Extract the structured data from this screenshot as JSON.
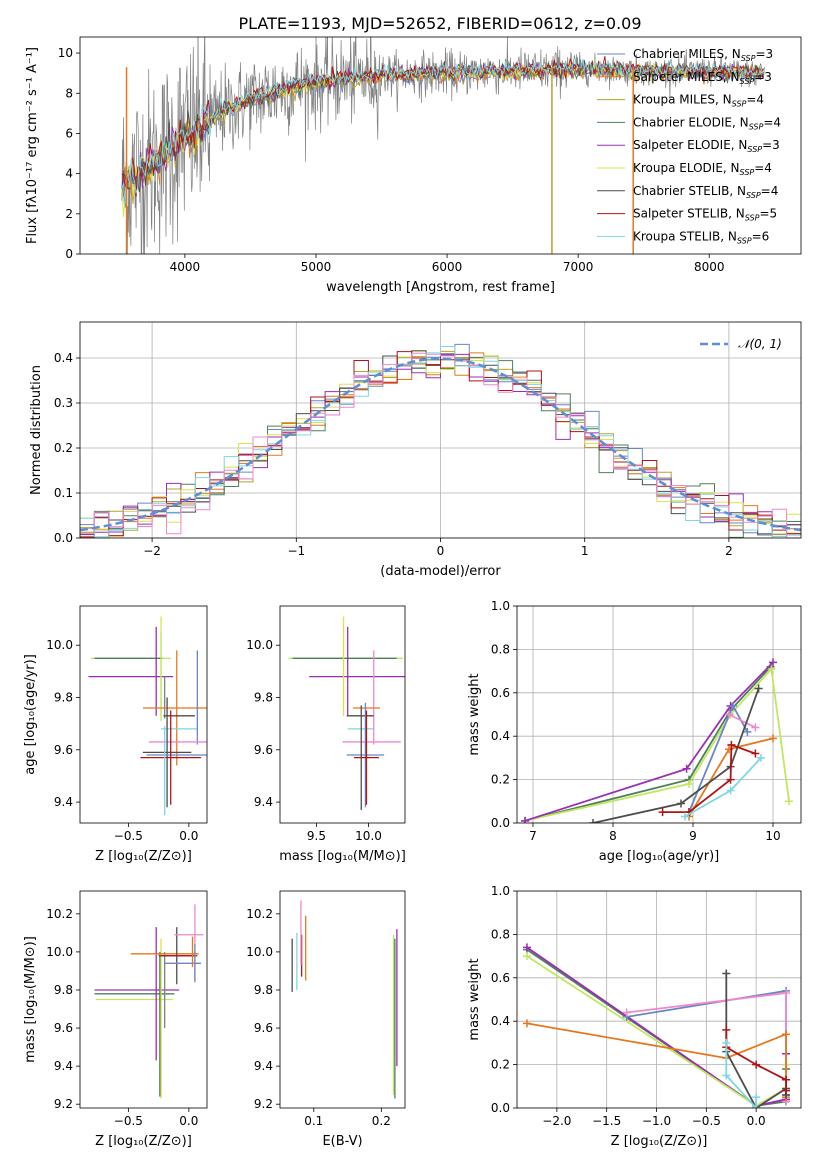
{
  "figure_title": "PLATE=1193, MJD=52652, FIBERID=0612, z=0.09",
  "colors": {
    "Chabrier MILES": "#6a86c8",
    "Salpeter MILES": "#e4781e",
    "Kroupa MILES": "#bba02a",
    "Chabrier ELODIE": "#4f7f5a",
    "Salpeter ELODIE": "#9a2fb5",
    "Kroupa ELODIE": "#d9e34a",
    "Chabrier STELIB": "#4d4d4d",
    "Salpeter STELIB": "#b01414",
    "Kroupa STELIB": "#7fd6e2",
    "Kroupa-pink": "#ee88cc",
    "Kroupa-lime": "#bfe860",
    "data": "#808080",
    "normal": "#5b8fd6"
  },
  "chart_data": [
    {
      "id": "spectrum",
      "type": "line",
      "xlabel": "wavelength [Angstrom, rest frame]",
      "ylabel": "Flux [fλ10⁻¹⁷ erg cm⁻² s⁻¹ A⁻¹]",
      "xlim": [
        3200,
        8700
      ],
      "ylim": [
        0,
        10.8
      ],
      "xticks": [
        4000,
        5000,
        6000,
        7000,
        8000
      ],
      "yticks": [
        0,
        2,
        4,
        6,
        8,
        10
      ],
      "legend_position": "top-right",
      "legend": [
        {
          "name": "Chabrier MILES, N_SSP=3",
          "label": "Chabrier MILES, N",
          "sub": "SSP",
          "tail": "=3",
          "color": "#6a86c8"
        },
        {
          "name": "Salpeter MILES, N_SSP=3",
          "label": "Salpeter MILES, N",
          "sub": "SSP",
          "tail": "=3",
          "color": "#e4781e"
        },
        {
          "name": "Kroupa MILES, N_SSP=4",
          "label": "Kroupa MILES, N",
          "sub": "SSP",
          "tail": "=4",
          "color": "#bba02a"
        },
        {
          "name": "Chabrier ELODIE, N_SSP=4",
          "label": "Chabrier ELODIE, N",
          "sub": "SSP",
          "tail": "=4",
          "color": "#4f7f5a"
        },
        {
          "name": "Salpeter ELODIE, N_SSP=3",
          "label": "Salpeter ELODIE, N",
          "sub": "SSP",
          "tail": "=3",
          "color": "#9a2fb5"
        },
        {
          "name": "Kroupa ELODIE, N_SSP=4",
          "label": "Kroupa ELODIE, N",
          "sub": "SSP",
          "tail": "=4",
          "color": "#d9e34a"
        },
        {
          "name": "Chabrier STELIB, N_SSP=4",
          "label": "Chabrier STELIB, N",
          "sub": "SSP",
          "tail": "=4",
          "color": "#4d4d4d"
        },
        {
          "name": "Salpeter STELIB, N_SSP=5",
          "label": "Salpeter STELIB, N",
          "sub": "SSP",
          "tail": "=5",
          "color": "#b01414"
        },
        {
          "name": "Kroupa STELIB, N_SSP=6",
          "label": "Kroupa STELIB, N",
          "sub": "SSP",
          "tail": "=6",
          "color": "#7fd6e2"
        }
      ],
      "model_anchors": [
        [
          3520,
          3.4
        ],
        [
          3650,
          4.1
        ],
        [
          3800,
          4.6
        ],
        [
          3950,
          5.6
        ],
        [
          4100,
          6.2
        ],
        [
          4300,
          7.1
        ],
        [
          4500,
          7.7
        ],
        [
          4800,
          8.3
        ],
        [
          5100,
          8.6
        ],
        [
          5500,
          8.9
        ],
        [
          6000,
          9.0
        ],
        [
          6500,
          9.1
        ],
        [
          7000,
          9.2
        ],
        [
          7500,
          9.1
        ],
        [
          8000,
          9.1
        ],
        [
          8400,
          9.0
        ]
      ],
      "data_range": [
        3520,
        8420
      ],
      "vlines": [
        {
          "x": 6800,
          "color": "#bba02a"
        },
        {
          "x": 7420,
          "color": "#e4781e"
        },
        {
          "x": 3555,
          "color": "#e4781e"
        }
      ]
    },
    {
      "id": "residuals",
      "type": "histogram",
      "xlabel": "(data-model)/error",
      "ylabel": "Normed distribution",
      "xlim": [
        -2.5,
        2.5
      ],
      "ylim": [
        0,
        0.48
      ],
      "xticks": [
        -2,
        -1,
        0,
        1,
        2
      ],
      "yticks": [
        0.0,
        0.1,
        0.2,
        0.3,
        0.4
      ],
      "bin_width": 0.1,
      "legend_position": "top-right",
      "legend": [
        {
          "label": "𝒩(0, 1)",
          "color": "#5b8fd6"
        }
      ]
    },
    {
      "id": "age_vs_z",
      "type": "errorbar",
      "xlabel": "Z [log₁₀(Z/Z⊙)]",
      "ylabel": "age  [log₁₀(age/yr)]",
      "xlim": [
        -0.9,
        0.15
      ],
      "ylim": [
        9.32,
        10.15
      ],
      "xticks": [
        -0.5,
        0.0
      ],
      "yticks": [
        9.4,
        9.6,
        9.8,
        10.0
      ],
      "points": [
        {
          "x": -0.48,
          "y": 9.95,
          "xerr": 0.33,
          "yerr": 0.0,
          "color": "#bfe860"
        },
        {
          "x": -0.5,
          "y": 9.95,
          "xerr": 0.28,
          "yerr": 0.0,
          "color": "#4f7f5a"
        },
        {
          "x": -0.48,
          "y": 9.88,
          "xerr": 0.35,
          "yerr": 0.0,
          "color": "#9a2fb5"
        },
        {
          "x": -0.23,
          "y": 9.92,
          "xerr": 0.0,
          "yerr": 0.19,
          "color": "#d9e34a"
        },
        {
          "x": -0.27,
          "y": 9.9,
          "xerr": 0.0,
          "yerr": 0.17,
          "color": "#9a2fb5"
        },
        {
          "x": -0.23,
          "y": 9.88,
          "xerr": 0.0,
          "yerr": 0.17,
          "color": "#bfe860"
        },
        {
          "x": -0.2,
          "y": 9.8,
          "xerr": 0.0,
          "yerr": 0.08,
          "color": "#808080"
        },
        {
          "x": -0.1,
          "y": 9.76,
          "xerr": 0.28,
          "yerr": 0.22,
          "color": "#e4781e"
        },
        {
          "x": -0.08,
          "y": 9.73,
          "xerr": 0.13,
          "yerr": 0.0,
          "color": "#4d4d4d"
        },
        {
          "x": -0.08,
          "y": 9.68,
          "xerr": 0.15,
          "yerr": 0.0,
          "color": "#7fd6e2"
        },
        {
          "x": 0.07,
          "y": 9.8,
          "xerr": 0.0,
          "yerr": 0.18,
          "color": "#6a86c8"
        },
        {
          "x": -0.05,
          "y": 9.63,
          "xerr": 0.28,
          "yerr": 0.0,
          "color": "#ee88cc"
        },
        {
          "x": -0.18,
          "y": 9.59,
          "xerr": 0.2,
          "yerr": 0.21,
          "color": "#4d4d4d"
        },
        {
          "x": -0.1,
          "y": 9.58,
          "xerr": 0.25,
          "yerr": 0.0,
          "color": "#6a86c8"
        },
        {
          "x": -0.15,
          "y": 9.57,
          "xerr": 0.25,
          "yerr": 0.18,
          "color": "#b01414"
        },
        {
          "x": -0.2,
          "y": 9.52,
          "xerr": 0.0,
          "yerr": 0.17,
          "color": "#7fd6e2"
        }
      ]
    },
    {
      "id": "age_vs_mass",
      "type": "errorbar",
      "xlabel": "mass [log₁₀(M/M⊙)]",
      "ylabel": "",
      "xlim": [
        9.15,
        10.35
      ],
      "ylim": [
        9.32,
        10.15
      ],
      "xticks": [
        9.5,
        10.0
      ],
      "yticks": [
        9.4,
        9.6,
        9.8,
        10.0
      ],
      "points": [
        {
          "x": 9.78,
          "y": 9.95,
          "xerr": 0.55,
          "yerr": 0.0,
          "color": "#bfe860"
        },
        {
          "x": 9.77,
          "y": 9.95,
          "xerr": 0.5,
          "yerr": 0.0,
          "color": "#4f7f5a"
        },
        {
          "x": 9.93,
          "y": 9.88,
          "xerr": 0.5,
          "yerr": 0.0,
          "color": "#9a2fb5"
        },
        {
          "x": 9.76,
          "y": 9.92,
          "xerr": 0.0,
          "yerr": 0.19,
          "color": "#d9e34a"
        },
        {
          "x": 9.8,
          "y": 9.9,
          "xerr": 0.0,
          "yerr": 0.17,
          "color": "#9a2fb5"
        },
        {
          "x": 10.05,
          "y": 9.8,
          "xerr": 0.0,
          "yerr": 0.18,
          "color": "#ee88cc"
        },
        {
          "x": 9.98,
          "y": 9.76,
          "xerr": 0.13,
          "yerr": 0.0,
          "color": "#e4781e"
        },
        {
          "x": 9.92,
          "y": 9.73,
          "xerr": 0.13,
          "yerr": 0.0,
          "color": "#4d4d4d"
        },
        {
          "x": 9.93,
          "y": 9.68,
          "xerr": 0.13,
          "yerr": 0.0,
          "color": "#7fd6e2"
        },
        {
          "x": 10.03,
          "y": 9.63,
          "xerr": 0.28,
          "yerr": 0.0,
          "color": "#ee88cc"
        },
        {
          "x": 9.97,
          "y": 9.58,
          "xerr": 0.18,
          "yerr": 0.2,
          "color": "#6a86c8"
        },
        {
          "x": 9.93,
          "y": 9.57,
          "xerr": 0.0,
          "yerr": 0.2,
          "color": "#4d4d4d"
        },
        {
          "x": 9.98,
          "y": 9.57,
          "xerr": 0.12,
          "yerr": 0.18,
          "color": "#b01414"
        }
      ]
    },
    {
      "id": "massweight_vs_age",
      "type": "line",
      "xlabel": "age  [log₁₀(age/yr)]",
      "ylabel": "mass weight",
      "xlim": [
        6.8,
        10.35
      ],
      "ylim": [
        0,
        1.0
      ],
      "xticks": [
        7,
        8,
        9,
        10
      ],
      "yticks": [
        0.0,
        0.2,
        0.4,
        0.6,
        0.8,
        1.0
      ],
      "series": [
        {
          "color": "#4f7f5a",
          "x": [
            6.9,
            8.95,
            9.47,
            9.97
          ],
          "y": [
            0.01,
            0.2,
            0.52,
            0.72
          ]
        },
        {
          "color": "#bfe860",
          "x": [
            6.9,
            8.95,
            9.47,
            9.98,
            10.2
          ],
          "y": [
            0.01,
            0.18,
            0.5,
            0.71,
            0.1
          ]
        },
        {
          "color": "#9a2fb5",
          "x": [
            6.9,
            8.92,
            9.47,
            10.0
          ],
          "y": [
            0.01,
            0.25,
            0.54,
            0.74
          ]
        },
        {
          "color": "#6a86c8",
          "x": [
            8.95,
            9.5,
            9.68
          ],
          "y": [
            0.05,
            0.54,
            0.42
          ]
        },
        {
          "color": "#ee88cc",
          "x": [
            9.45,
            9.78
          ],
          "y": [
            0.5,
            0.44
          ]
        },
        {
          "color": "#e4781e",
          "x": [
            8.95,
            9.45,
            10.0
          ],
          "y": [
            0.03,
            0.34,
            0.39
          ]
        },
        {
          "color": "#4d4d4d",
          "x": [
            7.75,
            8.85,
            9.47,
            9.82
          ],
          "y": [
            0.0,
            0.09,
            0.26,
            0.62
          ]
        },
        {
          "color": "#b01414",
          "x": [
            8.62,
            8.95,
            9.47,
            9.48,
            9.78
          ],
          "y": [
            0.05,
            0.05,
            0.2,
            0.36,
            0.32
          ]
        },
        {
          "color": "#7fd6e2",
          "x": [
            8.9,
            9.47,
            9.85
          ],
          "y": [
            0.03,
            0.15,
            0.3
          ]
        }
      ]
    },
    {
      "id": "mass_vs_z",
      "type": "errorbar",
      "xlabel": "Z [log₁₀(Z/Z⊙)]",
      "ylabel": "mass [log₁₀(M/M⊙)]",
      "xlim": [
        -0.9,
        0.15
      ],
      "ylim": [
        9.18,
        10.32
      ],
      "xticks": [
        -0.5,
        0.0
      ],
      "yticks": [
        9.2,
        9.4,
        9.6,
        9.8,
        10.0,
        10.2
      ],
      "points": [
        {
          "x": -0.45,
          "y": 9.78,
          "xerr": 0.33,
          "yerr": 0.0,
          "color": "#4f7f5a"
        },
        {
          "x": -0.45,
          "y": 9.75,
          "xerr": 0.32,
          "yerr": 0.0,
          "color": "#bfe860"
        },
        {
          "x": -0.43,
          "y": 9.8,
          "xerr": 0.35,
          "yerr": 0.0,
          "color": "#9a2fb5"
        },
        {
          "x": -0.27,
          "y": 9.78,
          "xerr": 0.0,
          "yerr": 0.35,
          "color": "#9a2fb5"
        },
        {
          "x": -0.23,
          "y": 9.65,
          "xerr": 0.0,
          "yerr": 0.42,
          "color": "#d9e34a"
        },
        {
          "x": -0.24,
          "y": 9.62,
          "xerr": 0.0,
          "yerr": 0.38,
          "color": "#4f7f5a"
        },
        {
          "x": -0.2,
          "y": 9.8,
          "xerr": 0.0,
          "yerr": 0.2,
          "color": "#808080"
        },
        {
          "x": -0.2,
          "y": 9.99,
          "xerr": 0.28,
          "yerr": 0.0,
          "color": "#e4781e"
        },
        {
          "x": -0.1,
          "y": 9.98,
          "xerr": 0.15,
          "yerr": 0.15,
          "color": "#4d4d4d"
        },
        {
          "x": -0.08,
          "y": 9.98,
          "xerr": 0.15,
          "yerr": 0.0,
          "color": "#b01414"
        },
        {
          "x": -0.05,
          "y": 9.94,
          "xerr": 0.15,
          "yerr": 0.0,
          "color": "#6a86c8"
        },
        {
          "x": 0.0,
          "y": 10.09,
          "xerr": 0.12,
          "yerr": 0.0,
          "color": "#ee88cc"
        },
        {
          "x": 0.05,
          "y": 10.05,
          "xerr": 0.0,
          "yerr": 0.2,
          "color": "#ee88cc"
        },
        {
          "x": 0.05,
          "y": 9.94,
          "xerr": 0.0,
          "yerr": 0.1,
          "color": "#6a86c8"
        },
        {
          "x": 0.03,
          "y": 10.0,
          "xerr": 0.0,
          "yerr": 0.08,
          "color": "#e4781e"
        }
      ]
    },
    {
      "id": "mass_vs_ebv",
      "type": "errorbar",
      "xlabel": "E(B-V)",
      "ylabel": "",
      "xlim": [
        0.05,
        0.235
      ],
      "ylim": [
        9.18,
        10.32
      ],
      "xticks": [
        0.1,
        0.2
      ],
      "yticks": [
        9.2,
        9.4,
        9.6,
        9.8,
        10.0,
        10.2
      ],
      "points": [
        {
          "x": 0.068,
          "y": 9.93,
          "xerr": 0.0,
          "yerr": 0.14,
          "color": "#4d4d4d"
        },
        {
          "x": 0.075,
          "y": 9.95,
          "xerr": 0.0,
          "yerr": 0.15,
          "color": "#7fd6e2"
        },
        {
          "x": 0.082,
          "y": 9.98,
          "xerr": 0.0,
          "yerr": 0.11,
          "color": "#b01414"
        },
        {
          "x": 0.081,
          "y": 10.1,
          "xerr": 0.0,
          "yerr": 0.17,
          "color": "#ee88cc"
        },
        {
          "x": 0.088,
          "y": 10.02,
          "xerr": 0.0,
          "yerr": 0.17,
          "color": "#e4781e"
        },
        {
          "x": 0.218,
          "y": 9.67,
          "xerr": 0.0,
          "yerr": 0.42,
          "color": "#bfe860"
        },
        {
          "x": 0.22,
          "y": 9.65,
          "xerr": 0.0,
          "yerr": 0.42,
          "color": "#4f7f5a"
        },
        {
          "x": 0.223,
          "y": 9.76,
          "xerr": 0.0,
          "yerr": 0.36,
          "color": "#9a2fb5"
        }
      ]
    },
    {
      "id": "massweight_vs_z",
      "type": "line",
      "xlabel": "Z [log₁₀(Z/Z⊙)]",
      "ylabel": "mass weight",
      "xlim": [
        -2.4,
        0.45
      ],
      "ylim": [
        0,
        1.0
      ],
      "xticks": [
        -2.0,
        -1.5,
        -1.0,
        -0.5,
        0.0
      ],
      "yticks": [
        0.0,
        0.2,
        0.4,
        0.6,
        0.8,
        1.0
      ],
      "series": [
        {
          "color": "#4f7f5a",
          "x": [
            -2.3,
            0.0,
            0.3,
            0.3
          ],
          "y": [
            0.73,
            0.01,
            0.03,
            0.18
          ]
        },
        {
          "color": "#9a2fb5",
          "x": [
            -2.3,
            0.0,
            0.3,
            0.3
          ],
          "y": [
            0.74,
            0.01,
            0.04,
            0.25
          ]
        },
        {
          "color": "#bfe860",
          "x": [
            -2.3,
            0.0,
            0.3,
            0.3
          ],
          "y": [
            0.7,
            0.01,
            0.09,
            0.2
          ]
        },
        {
          "color": "#6a86c8",
          "x": [
            -1.3,
            0.3,
            0.3
          ],
          "y": [
            0.42,
            0.54,
            0.06
          ]
        },
        {
          "color": "#ee88cc",
          "x": [
            -1.3,
            0.3,
            0.3
          ],
          "y": [
            0.44,
            0.53,
            0.03
          ]
        },
        {
          "color": "#e4781e",
          "x": [
            -2.3,
            -0.3,
            0.3,
            0.3
          ],
          "y": [
            0.39,
            0.23,
            0.34,
            0.05
          ]
        },
        {
          "color": "#4d4d4d",
          "x": [
            -0.3,
            -0.3,
            0.0,
            0.3,
            0.3
          ],
          "y": [
            0.62,
            0.26,
            0.0,
            0.09,
            0.06
          ]
        },
        {
          "color": "#b01414",
          "x": [
            -0.3,
            -0.3,
            0.0,
            0.3,
            0.3
          ],
          "y": [
            0.36,
            0.28,
            0.2,
            0.13,
            0.08
          ]
        },
        {
          "color": "#7fd6e2",
          "x": [
            -0.3,
            -0.3,
            0.0,
            0.0
          ],
          "y": [
            0.3,
            0.15,
            0.0,
            0.05
          ]
        }
      ]
    }
  ]
}
